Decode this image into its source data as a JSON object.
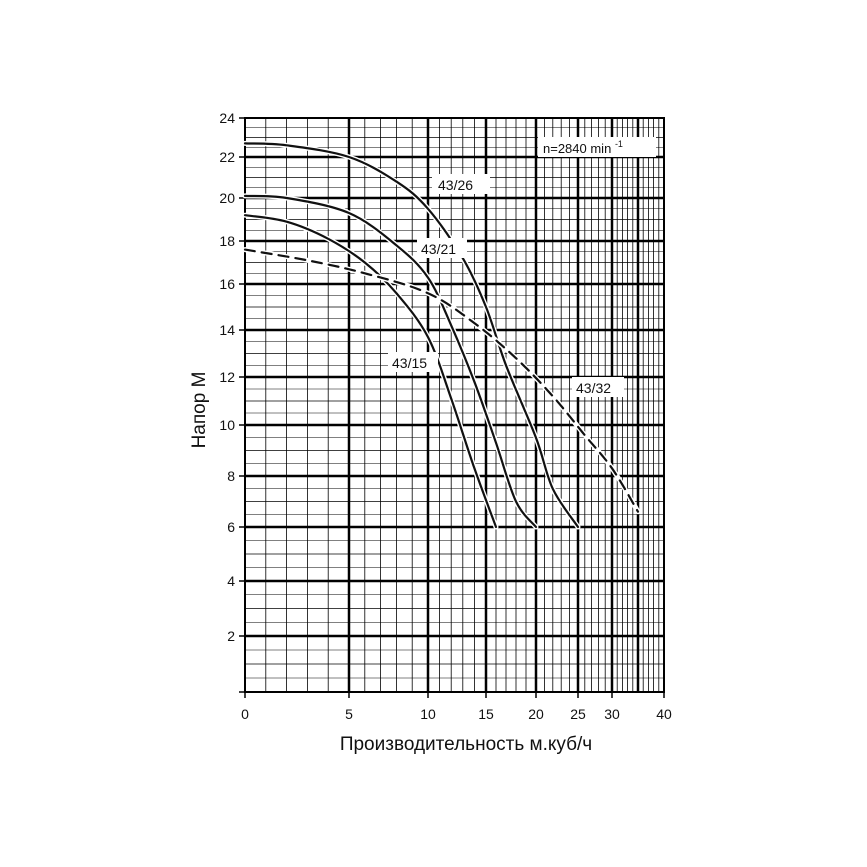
{
  "chart_data": {
    "type": "line",
    "xlabel": "Производительность м.куб/ч",
    "ylabel": "Напор М",
    "x_ticks": [
      "0",
      "5",
      "10",
      "15",
      "20",
      "25",
      "30",
      "40"
    ],
    "y_ticks": [
      "2",
      "4",
      "6",
      "8",
      "10",
      "12",
      "14",
      "16",
      "18",
      "20",
      "22",
      "24"
    ],
    "speed_annotation": "n=2840 min",
    "speed_exponent": "-1",
    "grid": true,
    "series": [
      {
        "name": "43/26",
        "style": "solid",
        "points": [
          [
            0,
            22.7
          ],
          [
            2,
            22.6
          ],
          [
            5,
            22.0
          ],
          [
            8,
            20.8
          ],
          [
            10,
            19.5
          ],
          [
            13,
            17.2
          ],
          [
            15,
            15.0
          ],
          [
            17,
            12.5
          ],
          [
            20,
            9.5
          ],
          [
            22,
            7.5
          ],
          [
            25,
            6.0
          ]
        ]
      },
      {
        "name": "43/21",
        "style": "solid",
        "points": [
          [
            0,
            20.1
          ],
          [
            2,
            20.0
          ],
          [
            5,
            19.3
          ],
          [
            8,
            17.8
          ],
          [
            10,
            16.3
          ],
          [
            12,
            14.2
          ],
          [
            14,
            11.8
          ],
          [
            16,
            9.3
          ],
          [
            18,
            7.0
          ],
          [
            20,
            6.0
          ]
        ]
      },
      {
        "name": "43/15",
        "style": "solid",
        "points": [
          [
            0,
            19.2
          ],
          [
            2,
            18.9
          ],
          [
            4,
            18.1
          ],
          [
            6,
            17.0
          ],
          [
            8,
            15.6
          ],
          [
            10,
            13.7
          ],
          [
            12,
            11.1
          ],
          [
            14,
            8.3
          ],
          [
            16,
            6.0
          ]
        ]
      },
      {
        "name": "43/32",
        "style": "dashed",
        "points": [
          [
            0,
            17.6
          ],
          [
            3,
            17.1
          ],
          [
            6,
            16.5
          ],
          [
            10,
            15.6
          ],
          [
            14,
            14.3
          ],
          [
            18,
            12.8
          ],
          [
            22,
            11.2
          ],
          [
            26,
            9.6
          ],
          [
            30,
            8.3
          ],
          [
            35,
            6.6
          ]
        ]
      }
    ]
  }
}
